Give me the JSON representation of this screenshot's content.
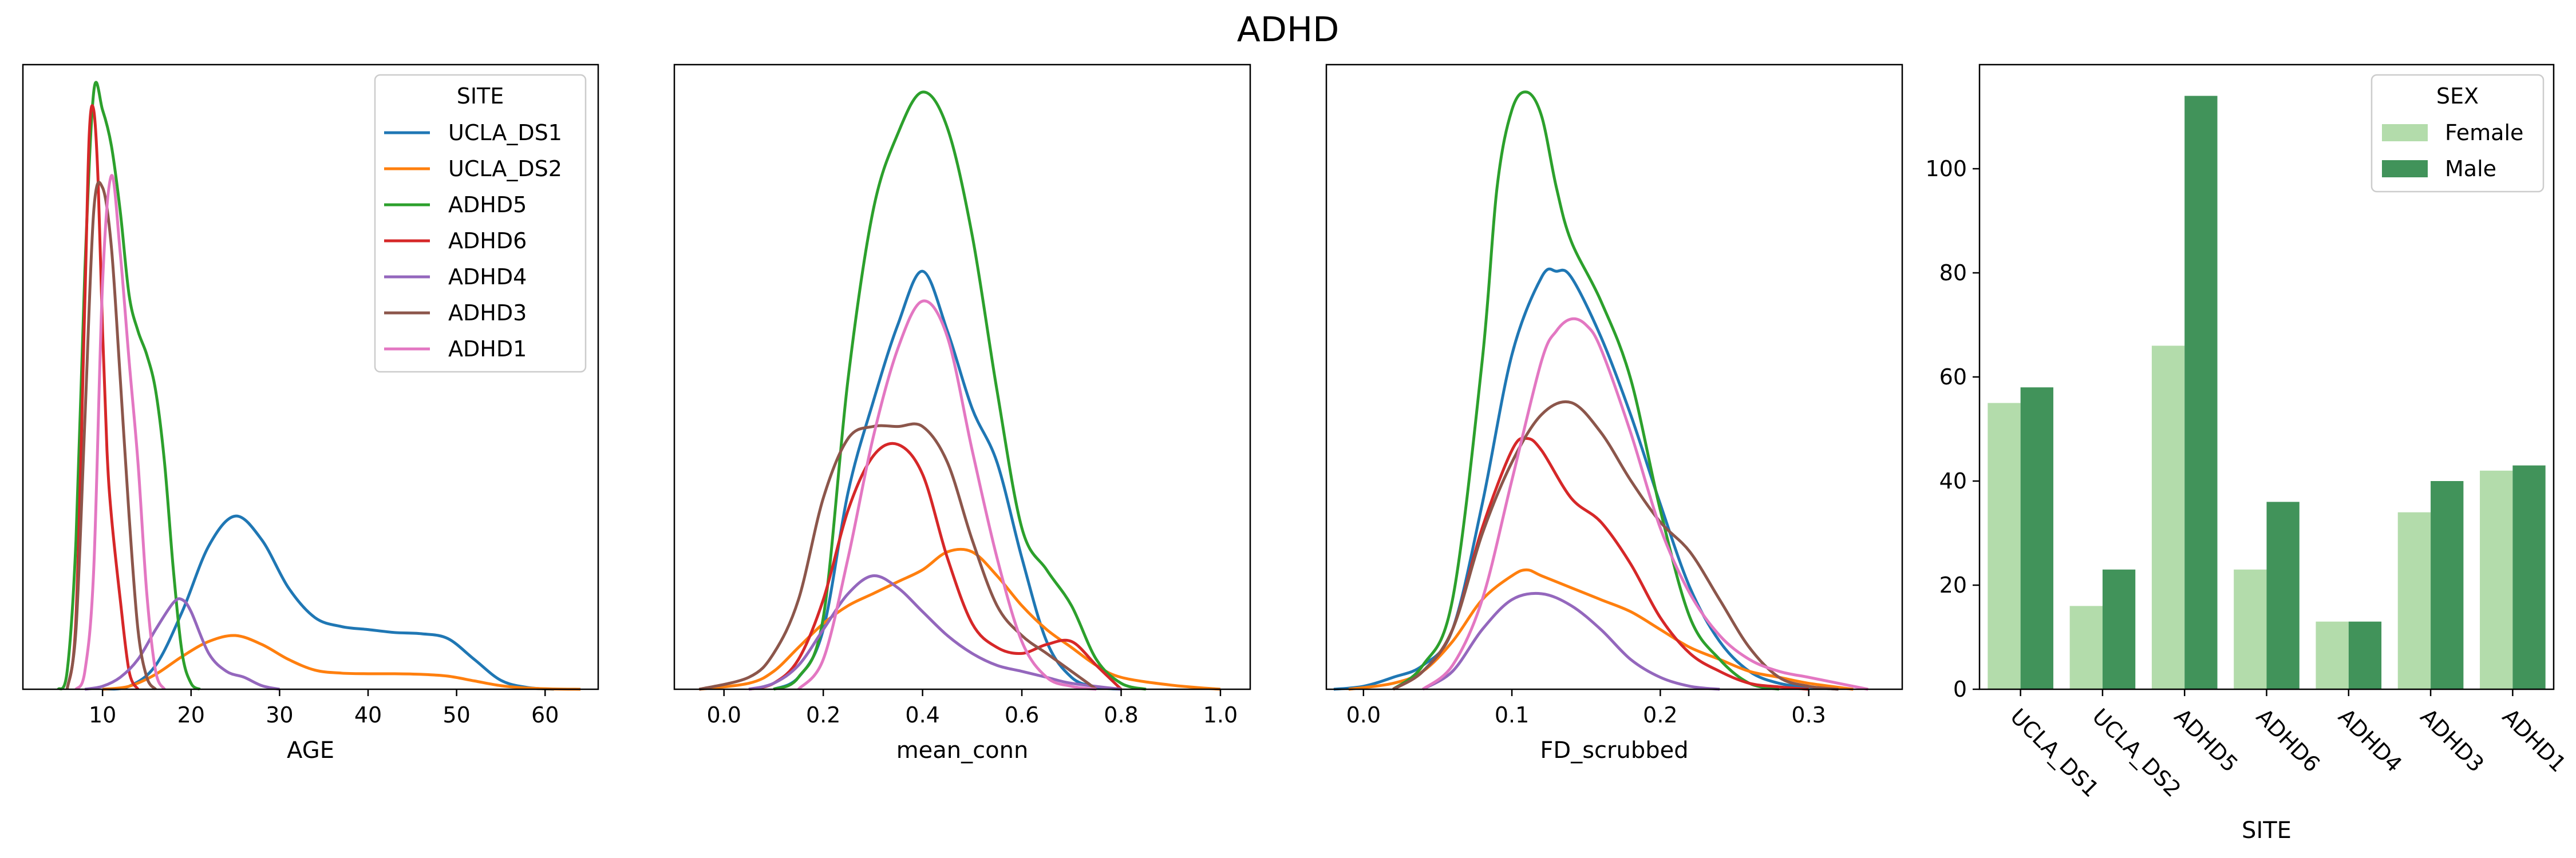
{
  "figure": {
    "title": "ADHD"
  },
  "colors": {
    "UCLA_DS1": "#1f77b4",
    "UCLA_DS2": "#ff7f0e",
    "ADHD5": "#2ca02c",
    "ADHD6": "#d62728",
    "ADHD4": "#9467bd",
    "ADHD3": "#8c564b",
    "ADHD1": "#e377c2",
    "Female": "#b3dcab",
    "Male": "#41935a"
  },
  "chart_data": [
    {
      "type": "line",
      "subtype": "kde",
      "xlabel": "AGE",
      "ylabel": "",
      "xlim": [
        1,
        66
      ],
      "ylim": [
        0,
        1.0
      ],
      "xticks": [
        10,
        20,
        30,
        40,
        50,
        60
      ],
      "xtick_labels": [
        "10",
        "20",
        "30",
        "40",
        "50",
        "60"
      ],
      "yticks_shown": false,
      "legend": {
        "title": "SITE",
        "placement": "top-right"
      },
      "series": [
        {
          "name": "UCLA_DS1",
          "x": [
            10,
            13,
            16,
            19,
            22,
            25,
            28,
            31,
            34,
            37,
            40,
            43,
            46,
            49,
            52,
            55,
            58,
            61
          ],
          "y": [
            0,
            0.005,
            0.04,
            0.13,
            0.24,
            0.29,
            0.25,
            0.17,
            0.12,
            0.105,
            0.1,
            0.095,
            0.093,
            0.085,
            0.05,
            0.015,
            0.003,
            0
          ]
        },
        {
          "name": "UCLA_DS2",
          "x": [
            10,
            13,
            16,
            19,
            22,
            25,
            28,
            31,
            34,
            37,
            40,
            43,
            46,
            49,
            52,
            55,
            58,
            61,
            64
          ],
          "y": [
            0,
            0.005,
            0.025,
            0.055,
            0.08,
            0.09,
            0.075,
            0.05,
            0.032,
            0.027,
            0.026,
            0.026,
            0.025,
            0.022,
            0.014,
            0.006,
            0.002,
            0.0005,
            0
          ]
        },
        {
          "name": "ADHD5",
          "x": [
            5,
            6,
            7,
            8,
            9,
            10,
            11,
            12,
            13,
            14,
            15,
            16,
            17,
            18,
            19,
            20,
            21
          ],
          "y": [
            0,
            0.03,
            0.25,
            0.7,
            1.0,
            0.97,
            0.91,
            0.8,
            0.66,
            0.6,
            0.56,
            0.5,
            0.38,
            0.2,
            0.06,
            0.01,
            0
          ]
        },
        {
          "name": "ADHD6",
          "x": [
            6,
            7,
            8,
            8.5,
            9,
            9.5,
            10,
            10.5,
            11,
            12,
            13,
            14
          ],
          "y": [
            0,
            0.12,
            0.65,
            0.93,
            0.97,
            0.85,
            0.6,
            0.4,
            0.29,
            0.15,
            0.03,
            0
          ]
        },
        {
          "name": "ADHD4",
          "x": [
            8,
            10,
            12,
            14,
            16,
            18,
            19,
            20,
            22,
            24,
            26,
            28,
            30
          ],
          "y": [
            0,
            0.005,
            0.02,
            0.05,
            0.1,
            0.145,
            0.15,
            0.13,
            0.06,
            0.03,
            0.02,
            0.006,
            0
          ]
        },
        {
          "name": "ADHD3",
          "x": [
            6,
            7,
            8,
            9,
            10,
            11,
            12,
            13,
            14,
            15,
            16
          ],
          "y": [
            0,
            0.1,
            0.45,
            0.8,
            0.84,
            0.74,
            0.52,
            0.29,
            0.1,
            0.02,
            0
          ]
        },
        {
          "name": "ADHD1",
          "x": [
            7,
            8,
            9,
            10,
            11,
            12,
            13,
            14,
            15,
            16,
            17
          ],
          "y": [
            0,
            0.03,
            0.2,
            0.68,
            0.86,
            0.73,
            0.55,
            0.38,
            0.16,
            0.03,
            0
          ]
        }
      ]
    },
    {
      "type": "line",
      "subtype": "kde",
      "xlabel": "mean_conn",
      "ylabel": "",
      "xlim": [
        -0.1,
        1.06
      ],
      "ylim": [
        0,
        1.0
      ],
      "xticks": [
        0.0,
        0.2,
        0.4,
        0.6,
        0.8,
        1.0
      ],
      "xtick_labels": [
        "0.0",
        "0.2",
        "0.4",
        "0.6",
        "0.8",
        "1.0"
      ],
      "yticks_shown": false,
      "series": [
        {
          "name": "UCLA_DS1",
          "x": [
            0.1,
            0.15,
            0.2,
            0.25,
            0.3,
            0.35,
            0.4,
            0.45,
            0.5,
            0.55,
            0.6,
            0.65,
            0.7,
            0.75,
            0.8
          ],
          "y": [
            0,
            0.02,
            0.1,
            0.33,
            0.48,
            0.61,
            0.7,
            0.6,
            0.47,
            0.38,
            0.22,
            0.08,
            0.02,
            0.004,
            0
          ]
        },
        {
          "name": "UCLA_DS2",
          "x": [
            -0.05,
            0.05,
            0.1,
            0.15,
            0.2,
            0.25,
            0.3,
            0.35,
            0.4,
            0.45,
            0.5,
            0.55,
            0.6,
            0.65,
            0.7,
            0.75,
            0.8,
            0.9,
            1.0
          ],
          "y": [
            0,
            0.01,
            0.03,
            0.07,
            0.11,
            0.14,
            0.16,
            0.18,
            0.2,
            0.23,
            0.23,
            0.19,
            0.14,
            0.1,
            0.07,
            0.04,
            0.02,
            0.007,
            0
          ]
        },
        {
          "name": "ADHD5",
          "x": [
            0.1,
            0.15,
            0.2,
            0.25,
            0.3,
            0.35,
            0.4,
            0.45,
            0.5,
            0.55,
            0.6,
            0.65,
            0.7,
            0.75,
            0.8,
            0.85
          ],
          "y": [
            0,
            0.02,
            0.12,
            0.52,
            0.8,
            0.93,
            1.0,
            0.94,
            0.76,
            0.5,
            0.27,
            0.2,
            0.14,
            0.05,
            0.01,
            0
          ]
        },
        {
          "name": "ADHD6",
          "x": [
            0.05,
            0.1,
            0.15,
            0.2,
            0.25,
            0.3,
            0.35,
            0.4,
            0.45,
            0.5,
            0.55,
            0.6,
            0.65,
            0.7,
            0.75,
            0.8
          ],
          "y": [
            0,
            0.01,
            0.05,
            0.15,
            0.3,
            0.39,
            0.41,
            0.36,
            0.22,
            0.11,
            0.07,
            0.06,
            0.075,
            0.08,
            0.04,
            0
          ]
        },
        {
          "name": "ADHD4",
          "x": [
            0.05,
            0.1,
            0.15,
            0.2,
            0.25,
            0.3,
            0.35,
            0.4,
            0.45,
            0.5,
            0.55,
            0.6,
            0.65,
            0.7,
            0.8
          ],
          "y": [
            0,
            0.01,
            0.04,
            0.1,
            0.16,
            0.19,
            0.17,
            0.13,
            0.09,
            0.06,
            0.04,
            0.03,
            0.02,
            0.01,
            0
          ]
        },
        {
          "name": "ADHD3",
          "x": [
            -0.05,
            0.05,
            0.1,
            0.15,
            0.2,
            0.25,
            0.3,
            0.35,
            0.4,
            0.45,
            0.5,
            0.55,
            0.6,
            0.65,
            0.7,
            0.75
          ],
          "y": [
            0,
            0.02,
            0.06,
            0.15,
            0.32,
            0.42,
            0.44,
            0.44,
            0.44,
            0.38,
            0.25,
            0.14,
            0.09,
            0.06,
            0.03,
            0
          ]
        },
        {
          "name": "ADHD1",
          "x": [
            0.15,
            0.2,
            0.25,
            0.3,
            0.35,
            0.4,
            0.45,
            0.5,
            0.55,
            0.6,
            0.65,
            0.7,
            0.75
          ],
          "y": [
            0,
            0.05,
            0.22,
            0.42,
            0.57,
            0.65,
            0.59,
            0.4,
            0.22,
            0.08,
            0.02,
            0.005,
            0
          ]
        }
      ]
    },
    {
      "type": "line",
      "subtype": "kde",
      "xlabel": "FD_scrubbed",
      "ylabel": "",
      "xlim": [
        -0.025,
        0.363
      ],
      "ylim": [
        0,
        1.0
      ],
      "xticks": [
        0.0,
        0.1,
        0.2,
        0.3
      ],
      "xtick_labels": [
        "0.0",
        "0.1",
        "0.2",
        "0.3"
      ],
      "yticks_shown": false,
      "series": [
        {
          "name": "UCLA_DS1",
          "x": [
            -0.02,
            0.0,
            0.02,
            0.04,
            0.06,
            0.08,
            0.1,
            0.12,
            0.13,
            0.14,
            0.16,
            0.18,
            0.2,
            0.22,
            0.24,
            0.26,
            0.28,
            0.3,
            0.32
          ],
          "y": [
            0,
            0.005,
            0.02,
            0.04,
            0.1,
            0.31,
            0.56,
            0.69,
            0.7,
            0.69,
            0.59,
            0.46,
            0.31,
            0.17,
            0.08,
            0.03,
            0.01,
            0.004,
            0
          ]
        },
        {
          "name": "UCLA_DS2",
          "x": [
            -0.01,
            0.02,
            0.04,
            0.06,
            0.08,
            0.1,
            0.11,
            0.12,
            0.14,
            0.16,
            0.18,
            0.2,
            0.22,
            0.24,
            0.26,
            0.28,
            0.3,
            0.33
          ],
          "y": [
            0,
            0.01,
            0.03,
            0.08,
            0.15,
            0.19,
            0.2,
            0.19,
            0.17,
            0.15,
            0.13,
            0.1,
            0.07,
            0.05,
            0.03,
            0.02,
            0.01,
            0
          ]
        },
        {
          "name": "ADHD5",
          "x": [
            0.02,
            0.04,
            0.06,
            0.08,
            0.09,
            0.1,
            0.11,
            0.12,
            0.13,
            0.14,
            0.16,
            0.18,
            0.2,
            0.22,
            0.24,
            0.26,
            0.28
          ],
          "y": [
            0,
            0.04,
            0.15,
            0.55,
            0.84,
            0.97,
            1.0,
            0.96,
            0.84,
            0.75,
            0.65,
            0.52,
            0.3,
            0.12,
            0.05,
            0.01,
            0
          ]
        },
        {
          "name": "ADHD6",
          "x": [
            0.02,
            0.04,
            0.06,
            0.08,
            0.1,
            0.11,
            0.12,
            0.14,
            0.16,
            0.18,
            0.2,
            0.22,
            0.24,
            0.26,
            0.28,
            0.3
          ],
          "y": [
            0,
            0.03,
            0.1,
            0.27,
            0.4,
            0.42,
            0.4,
            0.32,
            0.28,
            0.21,
            0.12,
            0.06,
            0.03,
            0.01,
            0.004,
            0
          ]
        },
        {
          "name": "ADHD4",
          "x": [
            0.04,
            0.06,
            0.08,
            0.1,
            0.12,
            0.14,
            0.16,
            0.18,
            0.2,
            0.22,
            0.24
          ],
          "y": [
            0,
            0.03,
            0.1,
            0.15,
            0.16,
            0.14,
            0.1,
            0.05,
            0.02,
            0.005,
            0
          ]
        },
        {
          "name": "ADHD3",
          "x": [
            0.02,
            0.04,
            0.06,
            0.08,
            0.1,
            0.12,
            0.14,
            0.16,
            0.18,
            0.2,
            0.22,
            0.24,
            0.26,
            0.28,
            0.3,
            0.32
          ],
          "y": [
            0,
            0.03,
            0.1,
            0.26,
            0.38,
            0.46,
            0.48,
            0.43,
            0.35,
            0.28,
            0.23,
            0.15,
            0.07,
            0.02,
            0.005,
            0
          ]
        },
        {
          "name": "ADHD1",
          "x": [
            0.04,
            0.06,
            0.08,
            0.1,
            0.12,
            0.13,
            0.14,
            0.15,
            0.16,
            0.18,
            0.2,
            0.22,
            0.24,
            0.26,
            0.28,
            0.3,
            0.32,
            0.34
          ],
          "y": [
            0,
            0.04,
            0.15,
            0.35,
            0.55,
            0.6,
            0.62,
            0.61,
            0.57,
            0.43,
            0.27,
            0.16,
            0.09,
            0.05,
            0.03,
            0.02,
            0.01,
            0
          ]
        }
      ]
    },
    {
      "type": "bar",
      "xlabel": "SITE",
      "ylabel": "",
      "ylim": [
        0,
        120
      ],
      "yticks": [
        0,
        20,
        40,
        60,
        80,
        100
      ],
      "categories": [
        "UCLA_DS1",
        "UCLA_DS2",
        "ADHD5",
        "ADHD6",
        "ADHD4",
        "ADHD3",
        "ADHD1"
      ],
      "legend": {
        "title": "SEX",
        "placement": "top-right"
      },
      "series": [
        {
          "name": "Female",
          "values": [
            55,
            16,
            66,
            23,
            13,
            34,
            42
          ]
        },
        {
          "name": "Male",
          "values": [
            58,
            23,
            114,
            36,
            13,
            40,
            43
          ]
        }
      ]
    }
  ]
}
